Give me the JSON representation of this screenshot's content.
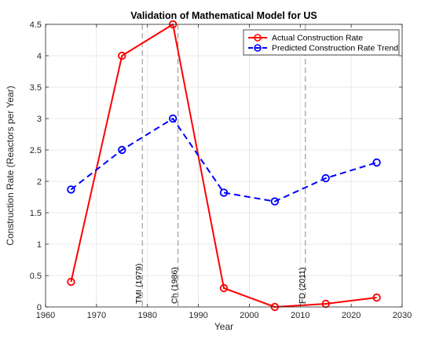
{
  "chart_data": {
    "type": "line",
    "title": "Validation of Mathematical Model for US",
    "xlabel": "Year",
    "ylabel": "Construction Rate (Reactors per Year)",
    "xlim": [
      1960,
      2030
    ],
    "ylim": [
      0,
      4.5
    ],
    "xticks": [
      "1960",
      "1970",
      "1980",
      "1990",
      "2000",
      "2010",
      "2020",
      "2030"
    ],
    "yticks": [
      "0",
      "0.5",
      "1",
      "1.5",
      "2",
      "2.5",
      "3",
      "3.5",
      "4",
      "4.5"
    ],
    "grid": true,
    "legend_position": "top-right",
    "x": [
      1965,
      1975,
      1985,
      1995,
      2005,
      2015,
      2025
    ],
    "series": [
      {
        "name": "Actual Construction Rate",
        "color": "#ff0000",
        "line_style": "solid",
        "marker": "circle",
        "values": [
          0.4,
          4.0,
          4.5,
          0.3,
          0.0,
          0.05,
          0.15
        ]
      },
      {
        "name": "Predicted Construction Rate Trend",
        "color": "#0000ff",
        "line_style": "dashed",
        "marker": "circle",
        "values": [
          1.87,
          2.5,
          3.0,
          1.82,
          1.68,
          2.05,
          2.3
        ]
      }
    ],
    "annotations": [
      {
        "x": 1979,
        "label": "TMI (1979)"
      },
      {
        "x": 1986,
        "label": "Ch (1986)"
      },
      {
        "x": 2011,
        "label": "FD (2011)"
      }
    ]
  }
}
